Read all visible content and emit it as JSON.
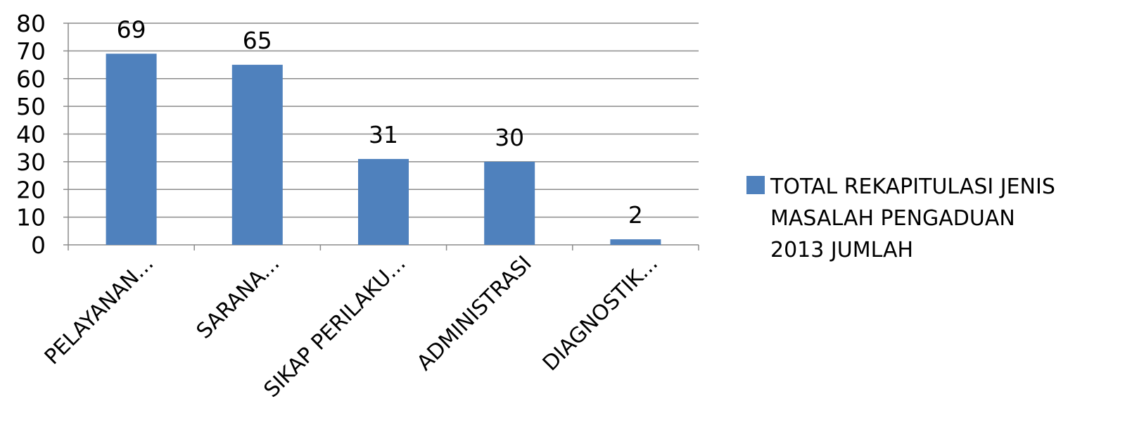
{
  "chart_data": {
    "type": "bar",
    "categories": [
      "PELAYANAN...",
      "SARANA...",
      "SIKAP PERILAKU...",
      "ADMINISTRASI",
      "DIAGNOSTIK..."
    ],
    "series": [
      {
        "name": "TOTAL REKAPITULASI JENIS MASALAH PENGADUAN 2013 JUMLAH",
        "values": [
          69,
          65,
          31,
          30,
          2
        ],
        "color": "#4F81BD"
      }
    ],
    "data_labels": [
      "69",
      "65",
      "31",
      "30",
      "2"
    ],
    "yticks": [
      "0",
      "10",
      "20",
      "30",
      "40",
      "50",
      "60",
      "70",
      "80"
    ],
    "ylim": [
      0,
      80
    ],
    "title": "",
    "xlabel": "",
    "ylabel": "",
    "grid": true,
    "legend_position": "right",
    "legend_lines": [
      "TOTAL REKAPITULASI JENIS",
      "MASALAH PENGADUAN",
      "2013 JUMLAH"
    ]
  }
}
